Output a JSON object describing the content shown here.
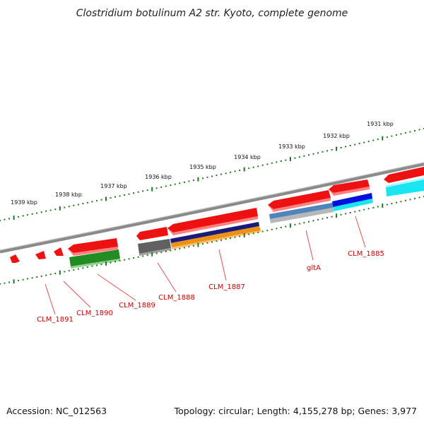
{
  "title": "Clostridium botulinum A2 str. Kyoto, complete genome",
  "footer": {
    "accession": "Accession: NC_012563",
    "summary": "Topology: circular; Length: 4,155,278 bp; Genes: 3,977"
  },
  "colors": {
    "backbone": "#8a8a8a",
    "tick": "#1f7a1f",
    "cds": "#ee1111",
    "label": "#cc0000",
    "leader": "#e05050"
  },
  "ruler_ticks": [
    {
      "label": "1939 kbp"
    },
    {
      "label": "1938 kbp"
    },
    {
      "label": "1937 kbp"
    },
    {
      "label": "1936 kbp"
    },
    {
      "label": "1935 kbp"
    },
    {
      "label": "1934 kbp"
    },
    {
      "label": "1933 kbp"
    },
    {
      "label": "1932 kbp"
    },
    {
      "label": "1931 kbp"
    }
  ],
  "genes": [
    {
      "label": "CLM_1891"
    },
    {
      "label": "CLM_1890"
    },
    {
      "label": "CLM_1889"
    },
    {
      "label": "CLM_1888"
    },
    {
      "label": "CLM_1887"
    },
    {
      "label": "gltA"
    },
    {
      "label": "CLM_1885"
    }
  ]
}
